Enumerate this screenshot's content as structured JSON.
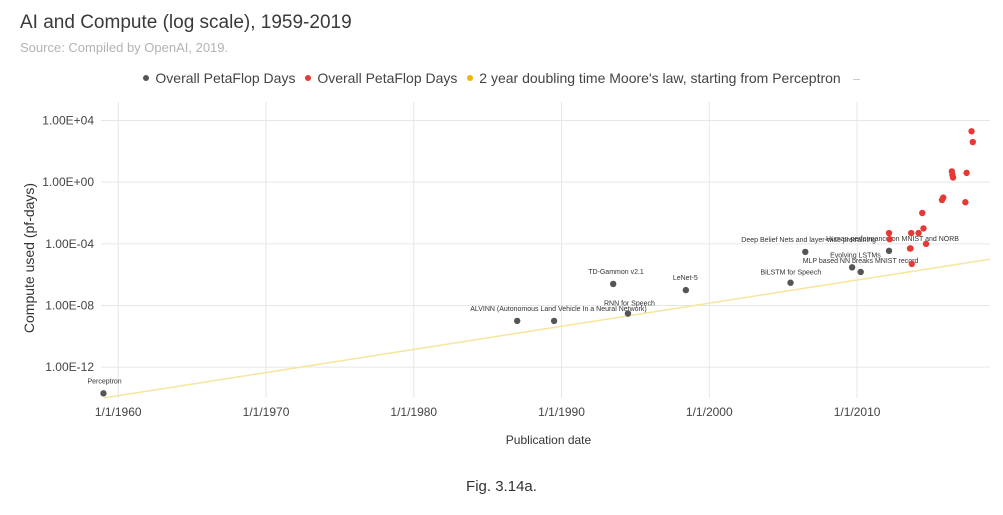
{
  "chart_data": {
    "type": "scatter",
    "title": "AI and Compute (log scale), 1959-2019",
    "subtitle": "Source: Compiled by OpenAI, 2019.",
    "xlabel": "Publication date",
    "ylabel": "Compute used (pf-days)",
    "x_scale": "date",
    "y_scale": "log",
    "xlim": [
      "1958-11-01",
      "2018-12-31"
    ],
    "ylim_log10": [
      -14,
      5.2
    ],
    "x_ticks": [
      {
        "label": "1/1/1960",
        "date": "1960-01-01"
      },
      {
        "label": "1/1/1970",
        "date": "1970-01-01"
      },
      {
        "label": "1/1/1980",
        "date": "1980-01-01"
      },
      {
        "label": "1/1/1990",
        "date": "1990-01-01"
      },
      {
        "label": "1/1/2000",
        "date": "2000-01-01"
      },
      {
        "label": "1/1/2010",
        "date": "2010-01-01"
      }
    ],
    "y_ticks": [
      {
        "label": "1.00E+04",
        "value": 10000
      },
      {
        "label": "1.00E+00",
        "value": 1
      },
      {
        "label": "1.00E-04",
        "value": 0.0001
      },
      {
        "label": "1.00E-08",
        "value": 1e-08
      },
      {
        "label": "1.00E-12",
        "value": 1e-12
      }
    ],
    "grid": true,
    "legend_position": "top",
    "legend": [
      {
        "label": "Overall PetaFlop Days",
        "color": "#555555"
      },
      {
        "label": "Overall PetaFlop Days",
        "color": "#e53935"
      },
      {
        "label": "2 year doubling time Moore's law, starting from Perceptron",
        "color": "#f2b400"
      }
    ],
    "series": [
      {
        "color": "#555555",
        "points": [
          {
            "date": "1959-01-01",
            "value": 2e-14,
            "label": "Perceptron"
          },
          {
            "date": "1987-01-01",
            "value": 1e-09,
            "label": "ALVINN (Autonomous Land Vehicle In a Neural Network)"
          },
          {
            "date": "1989-07-01",
            "value": 1e-09,
            "label": ""
          },
          {
            "date": "1993-07-01",
            "value": 2.5e-07,
            "label": "TD-Gammon v2.1"
          },
          {
            "date": "1994-07-01",
            "value": 3e-09,
            "label": "RNN for Speech"
          },
          {
            "date": "1998-06-01",
            "value": 1e-07,
            "label": "LeNet-5"
          },
          {
            "date": "2005-07-01",
            "value": 3e-07,
            "label": "BiLSTM for Speech"
          },
          {
            "date": "2006-07-01",
            "value": 3e-05,
            "label": "Deep Belief Nets and layer-wise pretraining"
          },
          {
            "date": "2009-09-01",
            "value": 3e-06,
            "label": "Evolving LSTMs"
          },
          {
            "date": "2010-04-01",
            "value": 1.5e-06,
            "label": "MLP based NN breaks MNIST record"
          },
          {
            "date": "2012-03-01",
            "value": 3.5e-05,
            "label": "Human performance on MNIST and NORB"
          }
        ]
      },
      {
        "color": "#e53935",
        "points": [
          {
            "date": "2012-03-01",
            "value": 0.0005
          },
          {
            "date": "2012-03-15",
            "value": 0.0002
          },
          {
            "date": "2013-09-01",
            "value": 0.0005
          },
          {
            "date": "2013-08-01",
            "value": 5e-05
          },
          {
            "date": "2013-09-15",
            "value": 5e-06
          },
          {
            "date": "2013-08-15",
            "value": 5e-05
          },
          {
            "date": "2014-03-01",
            "value": 0.0005
          },
          {
            "date": "2014-06-01",
            "value": 0.01
          },
          {
            "date": "2014-07-01",
            "value": 0.001
          },
          {
            "date": "2014-09-01",
            "value": 0.0001
          },
          {
            "date": "2015-10-01",
            "value": 0.07
          },
          {
            "date": "2015-11-01",
            "value": 0.1
          },
          {
            "date": "2016-06-01",
            "value": 5
          },
          {
            "date": "2016-07-01",
            "value": 2
          },
          {
            "date": "2016-06-15",
            "value": 3
          },
          {
            "date": "2017-06-01",
            "value": 4
          },
          {
            "date": "2017-05-01",
            "value": 0.05
          },
          {
            "date": "2017-10-01",
            "value": 2000
          },
          {
            "date": "2017-11-01",
            "value": 400
          }
        ]
      },
      {
        "color": "#f5e6a0",
        "line": [
          {
            "date": "1959-01-01",
            "value": 1e-14
          },
          {
            "date": "2018-12-31",
            "value": 1e-05
          }
        ]
      }
    ]
  },
  "caption": "Fig. 3.14a."
}
